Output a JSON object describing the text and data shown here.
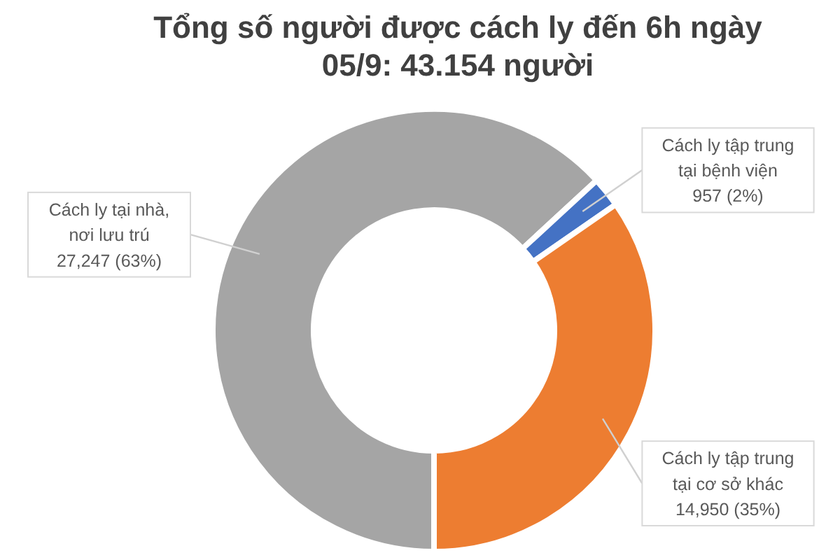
{
  "chart_data": {
    "type": "donut",
    "title": "Tổng số người được cách ly đến 6h ngày 05/9: 43.154 người",
    "categories": [
      "Cách ly tại nhà, nơi lưu trú",
      "Cách ly tập trung tại bệnh viện",
      "Cách ly tập trung tại cơ sở khác"
    ],
    "values": [
      27247,
      957,
      14950
    ],
    "colors": [
      "#a5a5a5",
      "#4472c4",
      "#ed7d31"
    ],
    "value_labels": [
      "27,247 (63%)",
      "957 (2%)",
      "14,950 (35%)"
    ]
  }
}
